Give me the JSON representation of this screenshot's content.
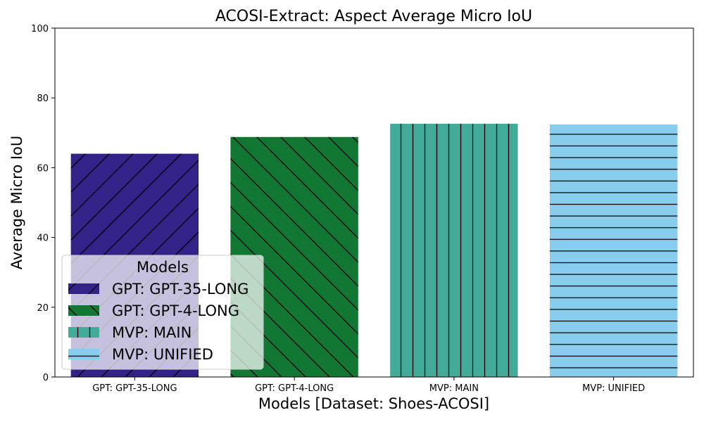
{
  "chart_data": {
    "type": "bar",
    "title": "ACOSI-Extract: Aspect Average Micro IoU",
    "xlabel": "Models [Dataset: Shoes-ACOSI]",
    "ylabel": "Average Micro IoU",
    "ylim": [
      0,
      100
    ],
    "yticks": [
      0,
      20,
      40,
      60,
      80,
      100
    ],
    "grid": false,
    "categories": [
      "GPT: GPT-35-LONG",
      "GPT: GPT-4-LONG",
      "MVP: MAIN",
      "MVP: UNIFIED"
    ],
    "values": [
      64.0,
      68.8,
      72.6,
      72.4
    ],
    "colors": [
      "#332288",
      "#117733",
      "#44AA99",
      "#88CCEE"
    ],
    "hatches": [
      "forward-diagonal",
      "back-diagonal",
      "vertical",
      "horizontal"
    ],
    "legend": {
      "title": "Models",
      "placement": "lower-left",
      "entries": [
        "GPT: GPT-35-LONG",
        "GPT: GPT-4-LONG",
        "MVP: MAIN",
        "MVP: UNIFIED"
      ]
    }
  }
}
